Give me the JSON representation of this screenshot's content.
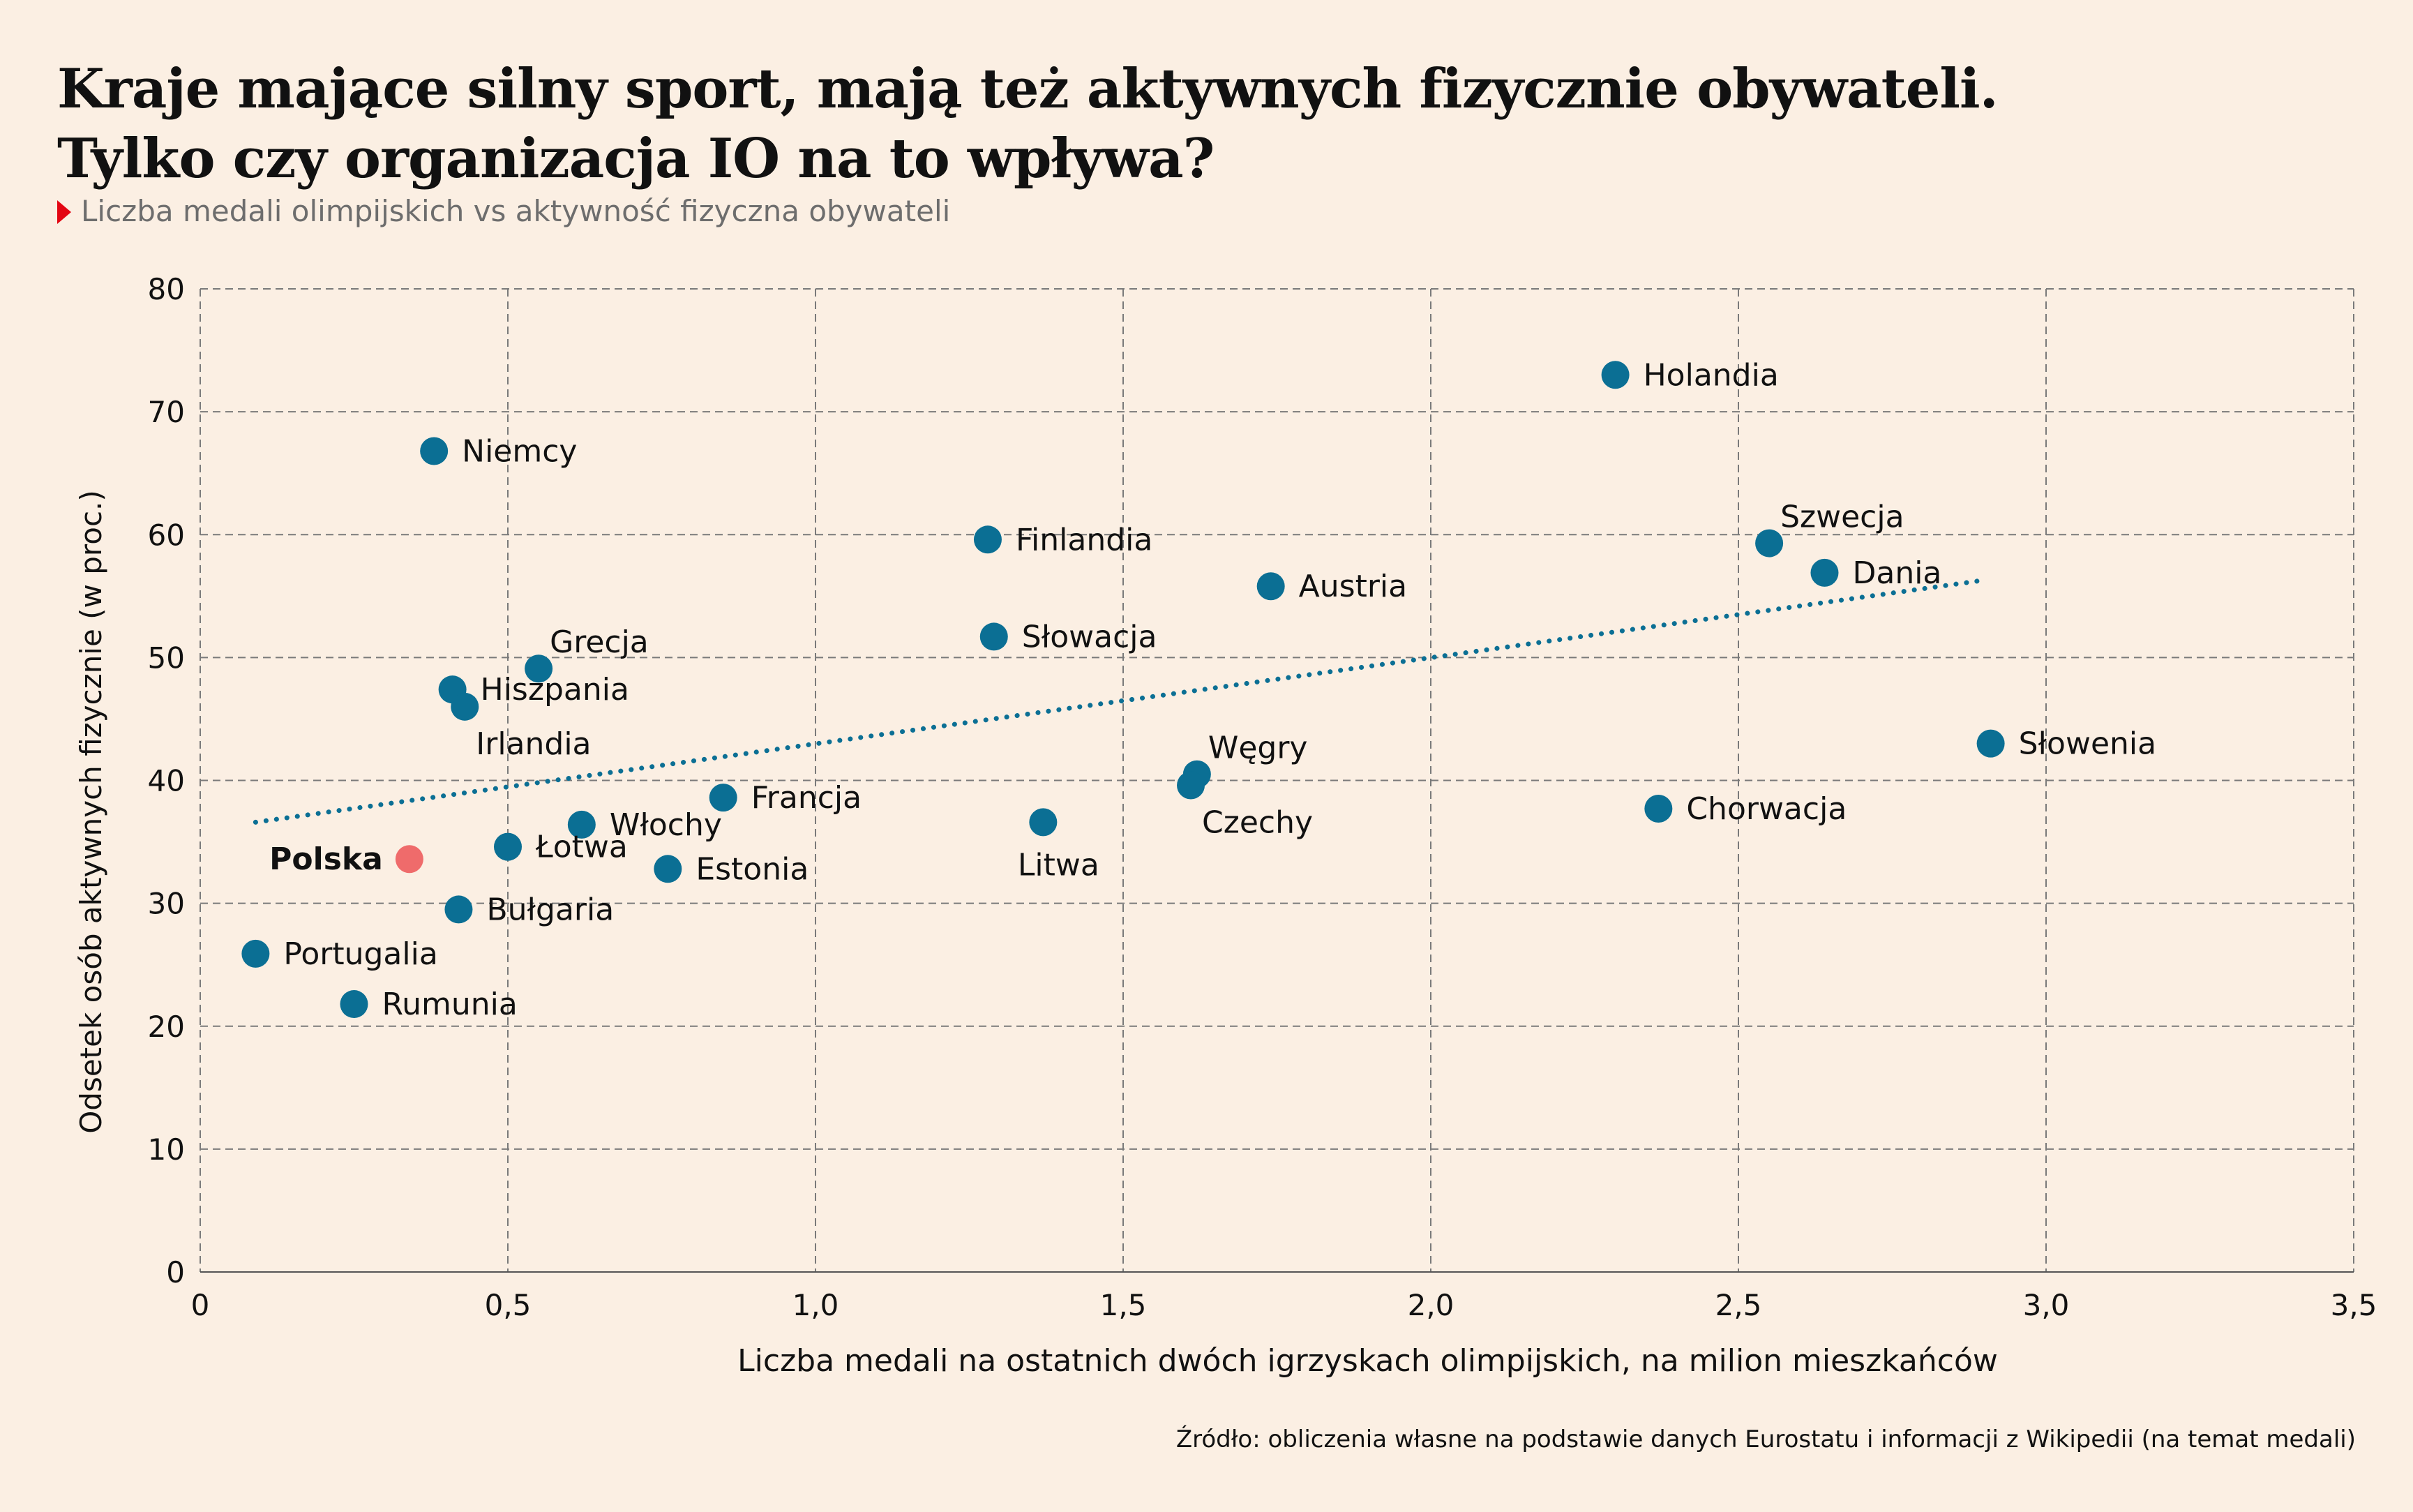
{
  "header": {
    "title_line1": "Kraje mające silny sport, mają też aktywnych fizycznie obywateli.",
    "title_line2": "Tylko czy organizacja IO na to wpływa?",
    "subtitle": "Liczba medali olimpijskich vs aktywność fizyczna obywateli",
    "subtitle_marker_color": "#e30613"
  },
  "source": "Źródło: obliczenia własne na podstawie danych Eurostatu i informacji z Wikipedii (na temat medali)",
  "colors": {
    "point": "#0b6f94",
    "highlight": "#ef6b6b",
    "trend": "#0b6f94",
    "grid": "#7a7a7a",
    "background": "#fbefe3"
  },
  "chart_data": {
    "type": "scatter",
    "xlabel": "Liczba medali na ostatnich dwóch igrzyskach olimpijskich, na milion mieszkańców",
    "ylabel": "Odsetek osób aktywnych fizycznie (w proc.)",
    "xlim": [
      0,
      3.5
    ],
    "ylim": [
      0,
      80
    ],
    "xticks": [
      0,
      0.5,
      1.0,
      1.5,
      2.0,
      2.5,
      3.0,
      3.5
    ],
    "xtick_labels": [
      "0",
      "0,5",
      "1,0",
      "1,5",
      "2,0",
      "2,5",
      "3,0",
      "3,5"
    ],
    "yticks": [
      0,
      10,
      20,
      30,
      40,
      50,
      60,
      70,
      80
    ],
    "ytick_labels": [
      "0",
      "10",
      "20",
      "30",
      "40",
      "50",
      "60",
      "70",
      "80"
    ],
    "grid": true,
    "trendline": {
      "style": "dotted",
      "x": [
        0.09,
        2.9
      ],
      "y": [
        36.6,
        56.3
      ]
    },
    "points": [
      {
        "label": "Holandia",
        "x": 2.3,
        "y": 73.0,
        "label_pos": "right"
      },
      {
        "label": "Niemcy",
        "x": 0.38,
        "y": 66.8,
        "label_pos": "right"
      },
      {
        "label": "Szwecja",
        "x": 2.55,
        "y": 59.3,
        "label_pos": "above-right"
      },
      {
        "label": "Finlandia",
        "x": 1.28,
        "y": 59.6,
        "label_pos": "right"
      },
      {
        "label": "Dania",
        "x": 2.64,
        "y": 56.9,
        "label_pos": "right"
      },
      {
        "label": "Austria",
        "x": 1.74,
        "y": 55.8,
        "label_pos": "right"
      },
      {
        "label": "Słowacja",
        "x": 1.29,
        "y": 51.7,
        "label_pos": "right"
      },
      {
        "label": "Grecja",
        "x": 0.55,
        "y": 49.1,
        "label_pos": "above-right"
      },
      {
        "label": "Hiszpania",
        "x": 0.41,
        "y": 47.4,
        "label_pos": "right"
      },
      {
        "label": "Irlandia",
        "x": 0.43,
        "y": 46.0,
        "label_pos": "below-right"
      },
      {
        "label": "Słowenia",
        "x": 2.91,
        "y": 43.0,
        "label_pos": "right"
      },
      {
        "label": "Węgry",
        "x": 1.62,
        "y": 40.5,
        "label_pos": "above-right"
      },
      {
        "label": "Czechy",
        "x": 1.61,
        "y": 39.6,
        "label_pos": "below-right"
      },
      {
        "label": "Francja",
        "x": 0.85,
        "y": 38.6,
        "label_pos": "right"
      },
      {
        "label": "Chorwacja",
        "x": 2.37,
        "y": 37.7,
        "label_pos": "right"
      },
      {
        "label": "Litwa",
        "x": 1.37,
        "y": 36.6,
        "label_pos": "below"
      },
      {
        "label": "Włochy",
        "x": 0.62,
        "y": 36.4,
        "label_pos": "right"
      },
      {
        "label": "Łotwa",
        "x": 0.5,
        "y": 34.6,
        "label_pos": "right"
      },
      {
        "label": "Polska",
        "x": 0.34,
        "y": 33.6,
        "label_pos": "left",
        "highlight": true
      },
      {
        "label": "Estonia",
        "x": 0.76,
        "y": 32.8,
        "label_pos": "right"
      },
      {
        "label": "Bułgaria",
        "x": 0.42,
        "y": 29.5,
        "label_pos": "right"
      },
      {
        "label": "Portugalia",
        "x": 0.09,
        "y": 25.9,
        "label_pos": "right"
      },
      {
        "label": "Rumunia",
        "x": 0.25,
        "y": 21.8,
        "label_pos": "right"
      }
    ]
  }
}
